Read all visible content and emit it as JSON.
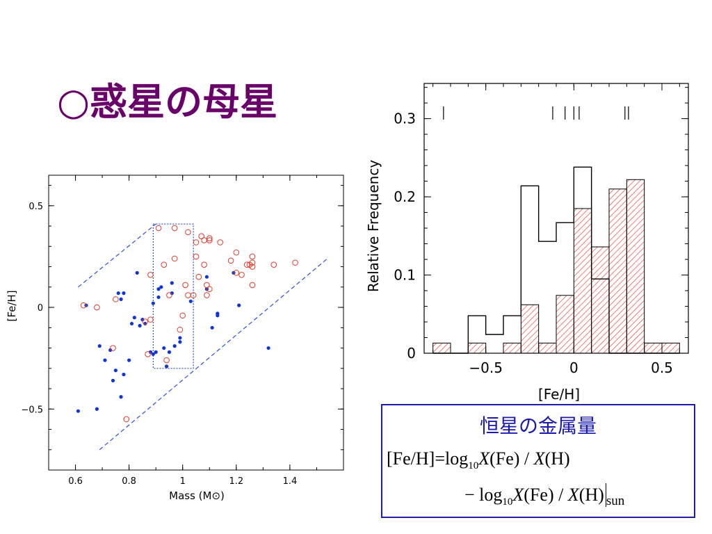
{
  "slide": {
    "title": "○惑星の母星"
  },
  "chart_data": [
    {
      "type": "scatter",
      "title": "",
      "xlabel": "Mass (M⊙)",
      "ylabel": "[Fe/H]",
      "xlim": [
        0.5,
        1.6
      ],
      "ylim": [
        -0.8,
        0.65
      ],
      "xticks": [
        0.6,
        0.8,
        1,
        1.2,
        1.4
      ],
      "xtick_labels": [
        "0.6",
        "0.8",
        "1",
        "1.2",
        "1.4"
      ],
      "yticks": [
        -0.5,
        0,
        0.5
      ],
      "ytick_labels": [
        "−0.5",
        "0",
        "0.5"
      ],
      "colors": {
        "filled": "#1034d8",
        "open": "#e03a2a",
        "guide": "#2b4fd8"
      },
      "series": [
        {
          "marker": "filled",
          "points": [
            [
              0.61,
              -0.51
            ],
            [
              0.64,
              0.01
            ],
            [
              0.68,
              -0.5
            ],
            [
              0.69,
              -0.19
            ],
            [
              0.71,
              -0.26
            ],
            [
              0.73,
              -0.21
            ],
            [
              0.74,
              -0.36
            ],
            [
              0.75,
              -0.31
            ],
            [
              0.76,
              0.07
            ],
            [
              0.77,
              0.04
            ],
            [
              0.77,
              -0.44
            ],
            [
              0.78,
              -0.33
            ],
            [
              0.78,
              0.07
            ],
            [
              0.8,
              -0.26
            ],
            [
              0.81,
              -0.08
            ],
            [
              0.82,
              -0.05
            ],
            [
              0.83,
              0.17
            ],
            [
              0.84,
              -0.09
            ],
            [
              0.85,
              -0.06
            ],
            [
              0.86,
              -0.08
            ],
            [
              0.88,
              -0.22
            ],
            [
              0.89,
              -0.23
            ],
            [
              0.89,
              0.02
            ],
            [
              0.9,
              -0.22
            ],
            [
              0.91,
              0.05
            ],
            [
              0.91,
              0.09
            ],
            [
              0.92,
              0.1
            ],
            [
              0.93,
              -0.2
            ],
            [
              0.94,
              -0.29
            ],
            [
              0.95,
              -0.22
            ],
            [
              0.96,
              0.07
            ],
            [
              0.96,
              0.12
            ],
            [
              0.97,
              -0.19
            ],
            [
              0.99,
              -0.17
            ],
            [
              0.99,
              -0.15
            ],
            [
              1.03,
              0.03
            ],
            [
              1.09,
              0.15
            ],
            [
              1.09,
              0.09
            ],
            [
              1.11,
              -0.1
            ],
            [
              1.13,
              -0.04
            ],
            [
              1.13,
              -0.03
            ],
            [
              1.19,
              0.17
            ],
            [
              1.21,
              0.01
            ],
            [
              1.32,
              -0.2
            ]
          ]
        },
        {
          "marker": "open",
          "points": [
            [
              0.63,
              0.01
            ],
            [
              0.68,
              0.0
            ],
            [
              0.74,
              -0.2
            ],
            [
              0.75,
              0.04
            ],
            [
              0.79,
              -0.55
            ],
            [
              0.86,
              -0.07
            ],
            [
              0.87,
              -0.23
            ],
            [
              0.88,
              0.16
            ],
            [
              0.88,
              -0.06
            ],
            [
              0.91,
              0.39
            ],
            [
              0.93,
              0.21
            ],
            [
              0.94,
              -0.26
            ],
            [
              0.95,
              0.06
            ],
            [
              0.97,
              0.39
            ],
            [
              0.97,
              0.24
            ],
            [
              0.99,
              -0.11
            ],
            [
              1.0,
              -0.04
            ],
            [
              1.01,
              0.11
            ],
            [
              1.02,
              0.37
            ],
            [
              1.02,
              0.06
            ],
            [
              1.04,
              0.06
            ],
            [
              1.05,
              0.32
            ],
            [
              1.05,
              0.25
            ],
            [
              1.06,
              0.15
            ],
            [
              1.07,
              0.35
            ],
            [
              1.08,
              0.33
            ],
            [
              1.08,
              0.21
            ],
            [
              1.09,
              0.11
            ],
            [
              1.09,
              0.06
            ],
            [
              1.1,
              0.34
            ],
            [
              1.1,
              0.33
            ],
            [
              1.1,
              0.09
            ],
            [
              1.14,
              0.32
            ],
            [
              1.18,
              0.23
            ],
            [
              1.2,
              0.27
            ],
            [
              1.2,
              0.17
            ],
            [
              1.22,
              0.16
            ],
            [
              1.24,
              0.21
            ],
            [
              1.25,
              0.21
            ],
            [
              1.26,
              0.25
            ],
            [
              1.26,
              0.22
            ],
            [
              1.26,
              0.2
            ],
            [
              1.26,
              0.11
            ],
            [
              1.34,
              0.21
            ],
            [
              1.42,
              0.22
            ]
          ]
        }
      ],
      "guide_lines": [
        [
          [
            0.61,
            0.1
          ],
          [
            0.9,
            0.41
          ]
        ],
        [
          [
            0.69,
            -0.7
          ],
          [
            1.54,
            0.24
          ]
        ]
      ],
      "guide_box": {
        "x": [
          0.89,
          1.04
        ],
        "y": [
          -0.3,
          0.41
        ]
      }
    },
    {
      "type": "histogram",
      "title": "",
      "xlabel": "[Fe/H]",
      "ylabel": "Relative Frequency",
      "xlim": [
        -0.85,
        0.65
      ],
      "ylim": [
        0,
        0.345
      ],
      "xticks": [
        -0.5,
        0,
        0.5
      ],
      "xtick_labels": [
        "−0.5",
        "0",
        "0.5"
      ],
      "yticks": [
        0,
        0.1,
        0.2,
        0.3
      ],
      "ytick_labels": [
        "0",
        "0.1",
        "0.2",
        "0.3"
      ],
      "colors": {
        "hatched": "#e03a2a",
        "outline": "#000000"
      },
      "bin_edges": [
        -0.8,
        -0.7,
        -0.6,
        -0.5,
        -0.4,
        -0.3,
        -0.2,
        -0.1,
        0.0,
        0.1,
        0.2,
        0.3,
        0.4,
        0.5,
        0.6
      ],
      "series": [
        {
          "style": "outline",
          "values": [
            0,
            0,
            0.048,
            0.024,
            0.048,
            0.214,
            0.143,
            0.167,
            0.238,
            0.095,
            0,
            0,
            0,
            0
          ]
        },
        {
          "style": "hatched",
          "values": [
            0.013,
            0,
            0.013,
            0,
            0.013,
            0.062,
            0.013,
            0.074,
            0.185,
            0.136,
            0.21,
            0.222,
            0.013,
            0.013
          ]
        }
      ],
      "top_ticks": [
        -0.74,
        -0.12,
        -0.05,
        0.0,
        0.03,
        0.29,
        0.31
      ]
    }
  ],
  "formula_box": {
    "heading": "恒星の金属量",
    "line1": {
      "prefix": "[Fe/H]=log",
      "sub": "10",
      "var1": "X",
      "mid": "(Fe) / ",
      "var2": "X",
      "end": "(H)"
    },
    "line2": {
      "prefix": "− log",
      "sub": "10",
      "var1": "X",
      "mid": "(Fe) / ",
      "var2": "X",
      "end": "(H)",
      "sun": "sun"
    }
  }
}
